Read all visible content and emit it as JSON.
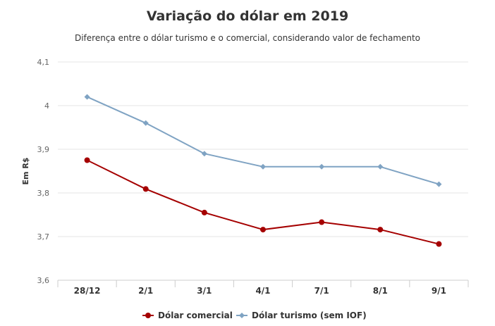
{
  "chart_data": {
    "type": "line",
    "title": "Variação do dólar em 2019",
    "subtitle": "Diferença entre o dólar turismo e o comercial, considerando valor de fechamento",
    "ylabel": "Em R$",
    "xlabel": "",
    "categories": [
      "28/12",
      "2/1",
      "3/1",
      "4/1",
      "7/1",
      "8/1",
      "9/1"
    ],
    "ylim": [
      3.6,
      4.1
    ],
    "yticks": [
      "3,6",
      "3,7",
      "3,8",
      "3,9",
      "4",
      "4,1"
    ],
    "grid": true,
    "legend": "bottom",
    "series": [
      {
        "name": "Dólar comercial",
        "color": "#a50000",
        "marker": "circle",
        "values": [
          3.875,
          3.809,
          3.755,
          3.716,
          3.733,
          3.716,
          3.683
        ]
      },
      {
        "name": "Dólar turismo (sem IOF)",
        "color": "#7fa3c3",
        "marker": "diamond",
        "values": [
          4.02,
          3.96,
          3.89,
          3.86,
          3.86,
          3.86,
          3.82
        ]
      }
    ]
  }
}
